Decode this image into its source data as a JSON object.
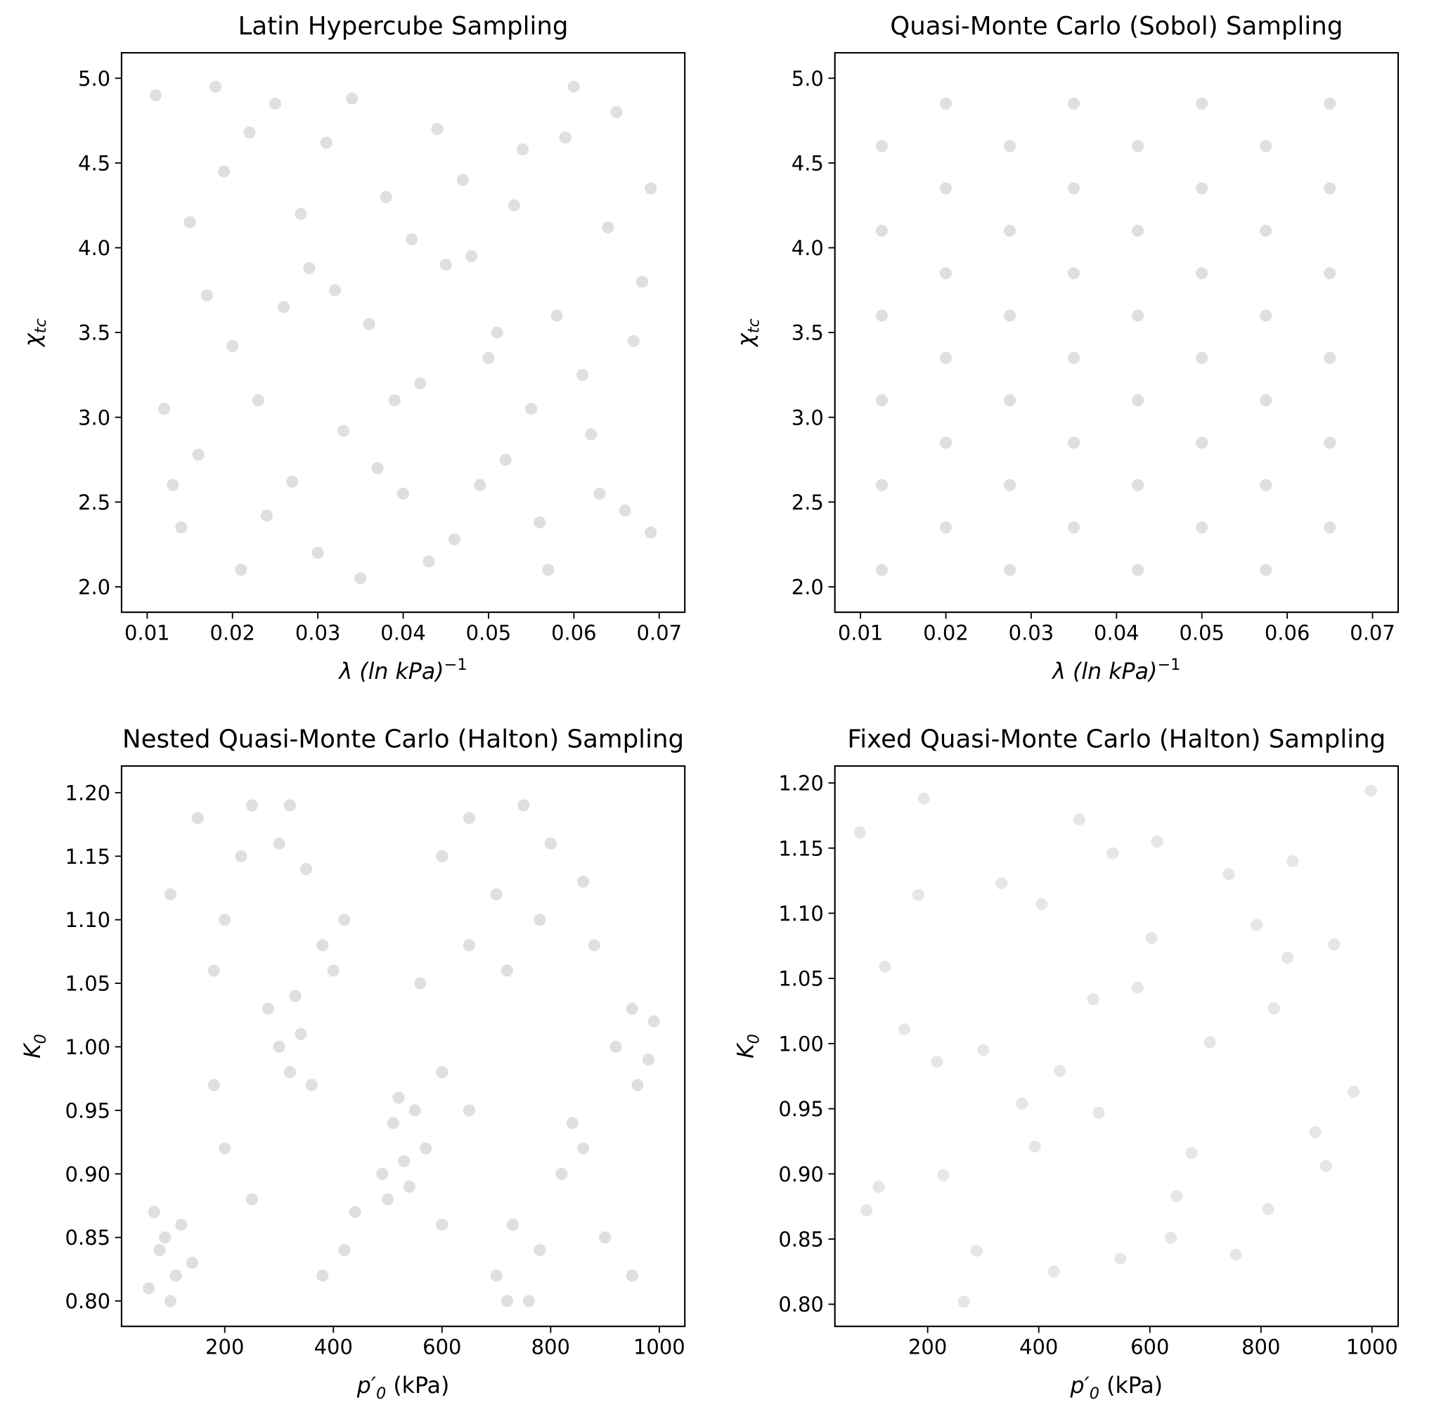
{
  "chart_data": [
    {
      "type": "scatter",
      "title": "Latin Hypercube Sampling",
      "xlabel": {
        "base": "λ (ln kPa)",
        "sup": "−1"
      },
      "ylabel": {
        "base": "χ",
        "sub": "tc"
      },
      "color": "#808080",
      "alpha": 0.25,
      "x": [
        0.011,
        0.014,
        0.017,
        0.019,
        0.021,
        0.023,
        0.025,
        0.027,
        0.029,
        0.031,
        0.033,
        0.035,
        0.036,
        0.038,
        0.04,
        0.042,
        0.044,
        0.046,
        0.048,
        0.05,
        0.052,
        0.054,
        0.056,
        0.058,
        0.06,
        0.062,
        0.064,
        0.066,
        0.068,
        0.069,
        0.012,
        0.015,
        0.016,
        0.02,
        0.022,
        0.024,
        0.026,
        0.028,
        0.03,
        0.032,
        0.034,
        0.037,
        0.039,
        0.041,
        0.043,
        0.045,
        0.047,
        0.049,
        0.051,
        0.053,
        0.055,
        0.057,
        0.059,
        0.061,
        0.063,
        0.065,
        0.067,
        0.069,
        0.013,
        0.018
      ],
      "y": [
        4.9,
        2.35,
        3.72,
        4.45,
        2.1,
        3.1,
        4.85,
        2.62,
        3.88,
        4.62,
        2.92,
        2.05,
        3.55,
        4.3,
        2.55,
        3.2,
        4.7,
        2.28,
        3.95,
        3.35,
        2.75,
        4.58,
        2.38,
        3.6,
        4.95,
        2.9,
        4.12,
        2.45,
        3.8,
        2.32,
        3.05,
        4.15,
        2.78,
        3.42,
        4.68,
        2.42,
        3.65,
        4.2,
        2.2,
        3.75,
        4.88,
        2.7,
        3.1,
        4.05,
        2.15,
        3.9,
        4.4,
        2.6,
        3.5,
        4.25,
        3.05,
        2.1,
        4.65,
        3.25,
        2.55,
        4.8,
        3.45,
        4.35,
        2.6,
        4.95
      ],
      "xlim": [
        0.007,
        0.073
      ],
      "ylim": [
        1.85,
        5.15
      ],
      "xticks": [
        0.01,
        0.02,
        0.03,
        0.04,
        0.05,
        0.06,
        0.07
      ],
      "yticks": [
        {
          "value": 2,
          "label": "2.0"
        },
        2.5,
        {
          "value": 3,
          "label": "3.0"
        },
        3.5,
        {
          "value": 4,
          "label": "4.0"
        },
        4.5,
        {
          "value": 5,
          "label": "5.0"
        }
      ]
    },
    {
      "type": "scatter",
      "title": "Quasi-Monte Carlo (Sobol) Sampling",
      "xlabel": {
        "base": "λ (ln kPa)",
        "sup": "−1"
      },
      "ylabel": {
        "base": "χ",
        "sub": "tc"
      },
      "color": "#808080",
      "alpha": 0.25,
      "x": [
        0.0125,
        0.02,
        0.0275,
        0.035,
        0.0425,
        0.05,
        0.0575,
        0.065,
        0.0125,
        0.02,
        0.0275,
        0.035,
        0.0425,
        0.05,
        0.0575,
        0.065,
        0.0125,
        0.02,
        0.0275,
        0.035,
        0.0425,
        0.05,
        0.0575,
        0.065,
        0.0125,
        0.02,
        0.0275,
        0.035,
        0.0425,
        0.05,
        0.0575,
        0.065,
        0.0125,
        0.02,
        0.0275,
        0.035,
        0.0425,
        0.05,
        0.0575,
        0.065,
        0.0125,
        0.02,
        0.0275,
        0.035,
        0.0425,
        0.05,
        0.0575,
        0.065
      ],
      "y": [
        2.1,
        2.35,
        2.1,
        2.35,
        2.1,
        2.35,
        2.1,
        2.35,
        2.6,
        2.85,
        2.6,
        2.85,
        2.6,
        2.85,
        2.6,
        2.85,
        3.1,
        3.35,
        3.1,
        3.35,
        3.1,
        3.35,
        3.1,
        3.35,
        3.6,
        3.85,
        3.6,
        3.85,
        3.6,
        3.85,
        3.6,
        3.85,
        4.1,
        4.35,
        4.1,
        4.35,
        4.1,
        4.35,
        4.1,
        4.35,
        4.6,
        4.85,
        4.6,
        4.85,
        4.6,
        4.85,
        4.6,
        4.85
      ],
      "xlim": [
        0.007,
        0.073
      ],
      "ylim": [
        1.85,
        5.15
      ],
      "xticks": [
        0.01,
        0.02,
        0.03,
        0.04,
        0.05,
        0.06,
        0.07
      ],
      "yticks": [
        {
          "value": 2,
          "label": "2.0"
        },
        2.5,
        {
          "value": 3,
          "label": "3.0"
        },
        3.5,
        {
          "value": 4,
          "label": "4.0"
        },
        4.5,
        {
          "value": 5,
          "label": "5.0"
        }
      ]
    },
    {
      "type": "scatter",
      "title": "Nested Quasi-Monte Carlo (Halton) Sampling",
      "xlabel": {
        "base": "p′",
        "sub": "0",
        "rest": " (kPa)"
      },
      "ylabel": {
        "base": "K",
        "sub": "0"
      },
      "color": "#808080",
      "alpha": 0.25,
      "x": [
        60,
        80,
        100,
        120,
        140,
        70,
        110,
        90,
        280,
        300,
        320,
        340,
        360,
        330,
        100,
        150,
        200,
        250,
        300,
        350,
        380,
        420,
        400,
        180,
        230,
        320,
        490,
        510,
        530,
        550,
        570,
        500,
        540,
        520,
        600,
        650,
        700,
        750,
        800,
        560,
        650,
        720,
        780,
        860,
        920,
        950,
        980,
        960,
        990,
        700,
        730,
        760,
        780,
        720,
        820,
        840,
        860,
        200,
        250,
        420,
        380,
        600,
        650,
        900,
        950,
        180,
        440,
        880,
        600
      ],
      "y": [
        0.81,
        0.84,
        0.8,
        0.86,
        0.83,
        0.87,
        0.82,
        0.85,
        1.03,
        1.0,
        0.98,
        1.01,
        0.97,
        1.04,
        1.12,
        1.18,
        1.1,
        1.19,
        1.16,
        1.14,
        1.08,
        1.1,
        1.06,
        1.06,
        1.15,
        1.19,
        0.9,
        0.94,
        0.91,
        0.95,
        0.92,
        0.88,
        0.89,
        0.96,
        1.15,
        1.18,
        1.12,
        1.19,
        1.16,
        1.05,
        1.08,
        1.06,
        1.1,
        1.13,
        1.0,
        1.03,
        0.99,
        0.97,
        1.02,
        0.82,
        0.86,
        0.8,
        0.84,
        0.8,
        0.9,
        0.94,
        0.92,
        0.92,
        0.88,
        0.84,
        0.82,
        0.98,
        0.95,
        0.85,
        0.82,
        0.97,
        0.87,
        1.08,
        0.86
      ],
      "xlim": [
        10,
        1047
      ],
      "ylim": [
        0.78,
        1.221
      ],
      "xticks": [
        200,
        400,
        600,
        800,
        1000
      ],
      "yticks": [
        {
          "value": 0.8,
          "label": "0.80"
        },
        0.85,
        {
          "value": 0.9,
          "label": "0.90"
        },
        0.95,
        {
          "value": 1,
          "label": "1.00"
        },
        1.05,
        {
          "value": 1.1,
          "label": "1.10"
        },
        1.15,
        {
          "value": 1.2,
          "label": "1.20"
        }
      ]
    },
    {
      "type": "scatter",
      "title": "Fixed Quasi-Monte Carlo (Halton) Sampling",
      "xlabel": {
        "base": "p′",
        "sub": "0",
        "rest": " (kPa)"
      },
      "ylabel": {
        "base": "K",
        "sub": "0"
      },
      "color": "#808080",
      "alpha": 0.2,
      "x": [
        78,
        193,
        998,
        473,
        533,
        613,
        333,
        742,
        857,
        183,
        405,
        792,
        123,
        603,
        932,
        848,
        498,
        578,
        158,
        708,
        823,
        217,
        300,
        438,
        370,
        508,
        967,
        393,
        898,
        228,
        675,
        917,
        112,
        90,
        648,
        813,
        288,
        427,
        547,
        638,
        755,
        265
      ],
      "y": [
        1.162,
        1.188,
        1.194,
        1.172,
        1.146,
        1.155,
        1.123,
        1.13,
        1.14,
        1.114,
        1.107,
        1.091,
        1.059,
        1.081,
        1.076,
        1.066,
        1.034,
        1.043,
        1.011,
        1.001,
        1.027,
        0.986,
        0.995,
        0.979,
        0.954,
        0.947,
        0.963,
        0.921,
        0.932,
        0.899,
        0.916,
        0.906,
        0.89,
        0.872,
        0.883,
        0.873,
        0.841,
        0.825,
        0.835,
        0.851,
        0.838,
        0.802
      ],
      "xlim": [
        33,
        1047
      ],
      "ylim": [
        0.783,
        1.213
      ],
      "xticks": [
        200,
        400,
        600,
        800,
        1000
      ],
      "yticks": [
        {
          "value": 0.8,
          "label": "0.80"
        },
        0.85,
        {
          "value": 0.9,
          "label": "0.90"
        },
        0.95,
        {
          "value": 1,
          "label": "1.00"
        },
        1.05,
        {
          "value": 1.1,
          "label": "1.10"
        },
        1.15,
        {
          "value": 1.2,
          "label": "1.20"
        }
      ]
    }
  ]
}
